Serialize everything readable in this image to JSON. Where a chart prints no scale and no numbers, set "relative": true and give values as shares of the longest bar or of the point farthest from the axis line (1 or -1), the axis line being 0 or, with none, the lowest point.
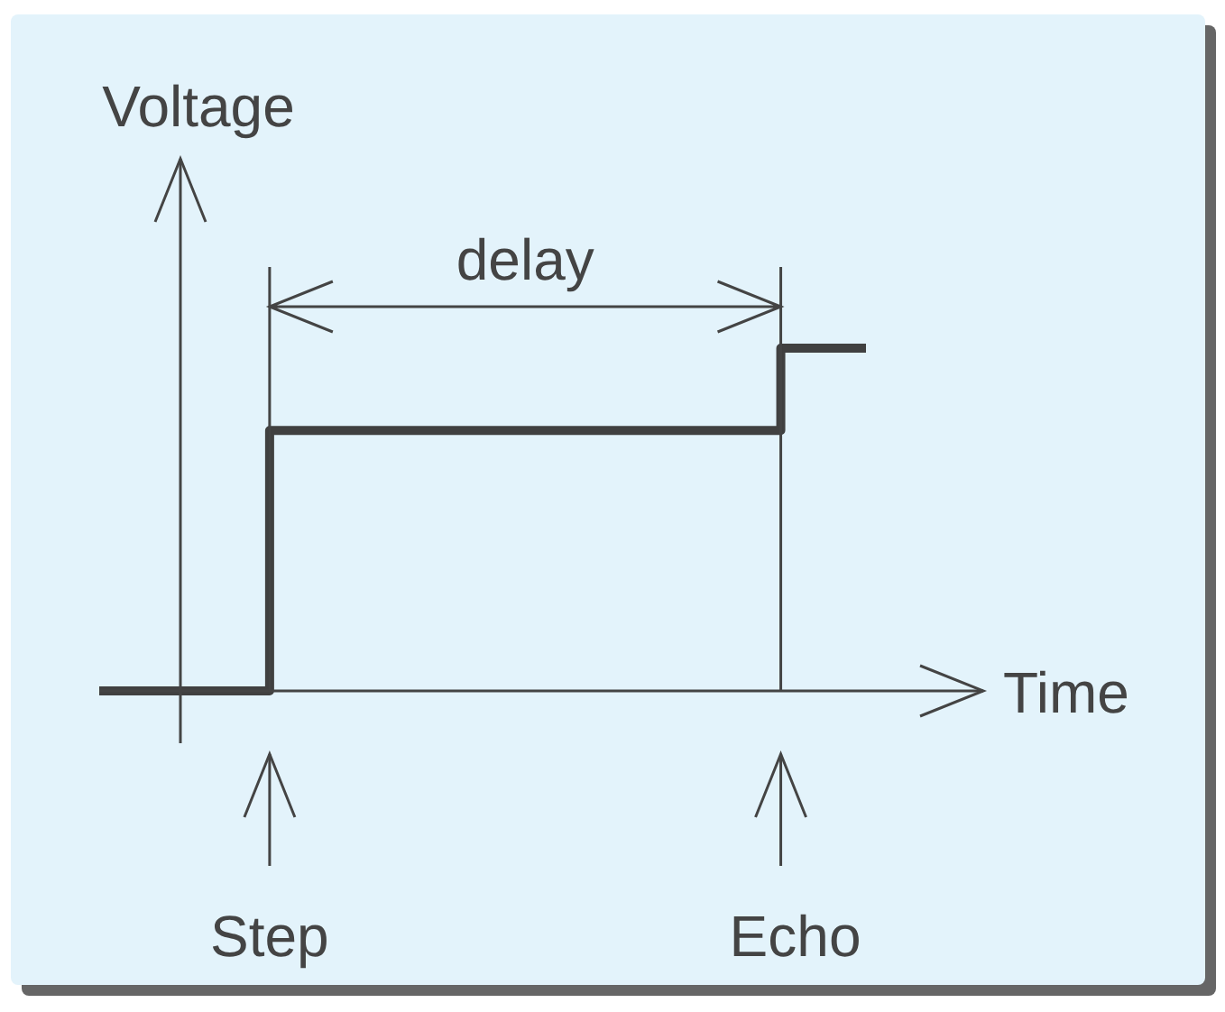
{
  "chart_data": {
    "type": "step",
    "relative": true,
    "xlabel": "Time",
    "ylabel": "Voltage",
    "categories": [
      null,
      null,
      null,
      null,
      null,
      null,
      null,
      null,
      null,
      null
    ],
    "series": [
      {
        "color": "#404040",
        "values": [
          0,
          0,
          0.76,
          0.76,
          0.76,
          0.76,
          0.76,
          0.76,
          1,
          1
        ]
      }
    ],
    "annotations": [
      "delay",
      "Step",
      "Echo"
    ],
    "legend": false,
    "grid": false
  }
}
